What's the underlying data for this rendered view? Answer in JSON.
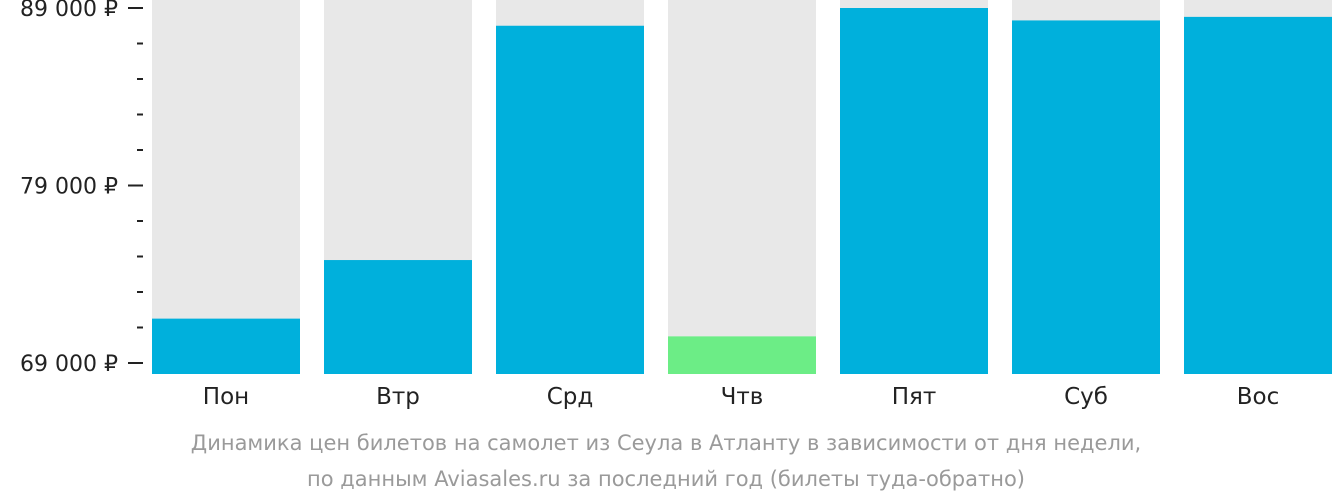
{
  "chart_data": {
    "type": "bar",
    "categories": [
      "Пон",
      "Втр",
      "Срд",
      "Чтв",
      "Пят",
      "Суб",
      "Вос"
    ],
    "values": [
      71500,
      74800,
      88000,
      70500,
      89000,
      88300,
      88500
    ],
    "ylim": [
      69000,
      89000
    ],
    "yticks": [
      {
        "value": 69000,
        "label": "69 000 ₽"
      },
      {
        "value": 79000,
        "label": "79 000 ₽"
      },
      {
        "value": 89000,
        "label": "89 000 ₽"
      }
    ],
    "minor_tick_step": 2000,
    "colors": {
      "bar": "#00b0dc",
      "lowest_bar": "#6ced86",
      "bar_background": "#e8e8e8",
      "axis": "#222222"
    },
    "highlight_index": 3
  },
  "caption": {
    "line1": "Динамика цен билетов на самолет из Сеула в Атланту в зависимости от дня недели,",
    "line2": "по данным Aviasales.ru за последний год (билеты туда-обратно)"
  }
}
